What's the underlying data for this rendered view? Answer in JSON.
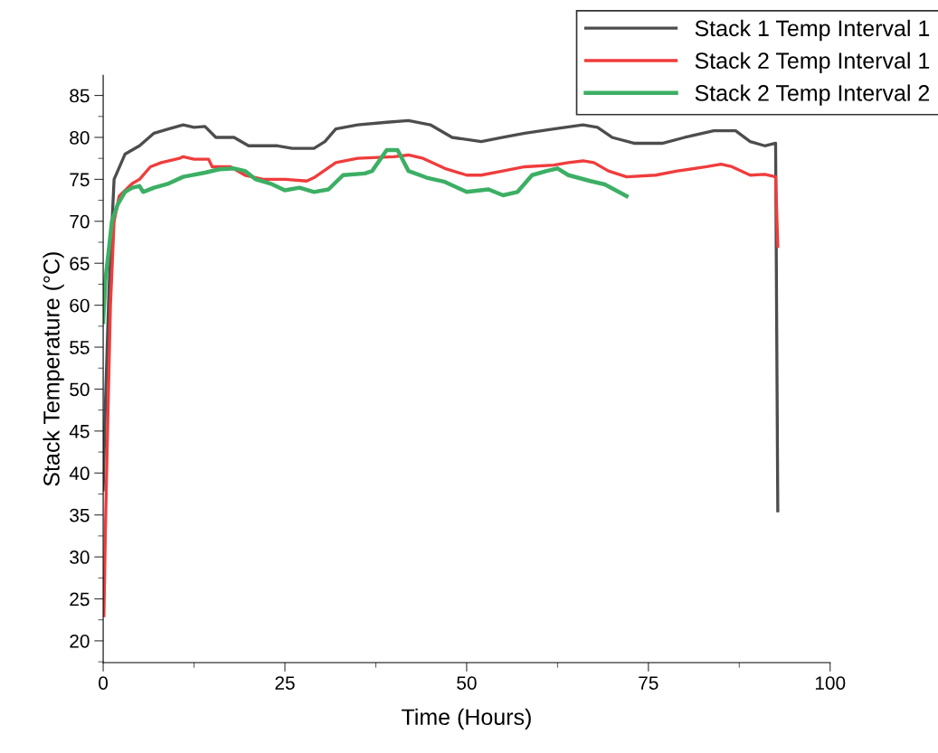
{
  "chart_data": {
    "type": "line",
    "xlabel": "Time (Hours)",
    "ylabel": "Stack Temperature (°C)",
    "xlim": [
      0,
      100
    ],
    "xticks": [
      0,
      25,
      50,
      75,
      100
    ],
    "ylim": [
      17.4,
      87.4
    ],
    "yticks": [
      20,
      25,
      30,
      35,
      40,
      45,
      50,
      55,
      60,
      65,
      70,
      75,
      80,
      85
    ],
    "grid": false,
    "legend": "top right",
    "line_style": "solid",
    "marker": "none",
    "series": [
      {
        "name": "Stack 1 Temp Interval 1",
        "color": "#4d4d4d",
        "x": [
          0,
          0.3,
          0.8,
          1.5,
          3,
          5,
          7,
          9,
          11,
          12.5,
          14,
          15.5,
          18,
          20,
          24,
          26,
          29,
          30.5,
          32,
          35,
          39,
          42,
          45,
          48,
          52,
          55,
          58,
          62,
          66,
          68,
          70,
          73,
          77,
          80,
          84,
          87,
          89,
          91,
          92.5,
          92.8
        ],
        "values": [
          38,
          48,
          62,
          75,
          78,
          79,
          80.5,
          81,
          81.5,
          81.2,
          81.3,
          80,
          80,
          79,
          79,
          78.7,
          78.7,
          79.5,
          81,
          81.5,
          81.8,
          82,
          81.5,
          80,
          79.5,
          80,
          80.5,
          81,
          81.5,
          81.2,
          80,
          79.3,
          79.3,
          80,
          80.8,
          80.8,
          79.5,
          79,
          79.3,
          35.5
        ]
      },
      {
        "name": "Stack 2 Temp Interval 1",
        "color": "#f03c3c",
        "x": [
          0.1,
          0.3,
          0.6,
          1,
          1.5,
          2.2,
          4,
          5,
          6.5,
          8,
          10.5,
          11,
          12.5,
          14.5,
          15,
          17.5,
          19.5,
          22,
          25,
          28,
          29,
          32,
          35,
          40,
          42,
          44,
          47,
          50,
          52,
          55,
          58,
          62,
          64,
          66,
          67.5,
          69.5,
          72,
          76,
          79,
          83,
          85,
          86.5,
          89,
          91,
          92.5,
          92.8
        ],
        "values": [
          23,
          33,
          45,
          60,
          70,
          73,
          74.5,
          75,
          76.5,
          77,
          77.5,
          77.7,
          77.4,
          77.4,
          76.5,
          76.5,
          75.5,
          75,
          75,
          74.8,
          75.2,
          77,
          77.5,
          77.7,
          77.9,
          77.5,
          76.3,
          75.5,
          75.5,
          76,
          76.5,
          76.7,
          77,
          77.2,
          77,
          76,
          75.3,
          75.5,
          76,
          76.5,
          76.8,
          76.5,
          75.5,
          75.6,
          75.3,
          67
        ]
      },
      {
        "name": "Stack 2 Temp Interval 2",
        "color": "#3caf64",
        "x": [
          0,
          0.3,
          0.7,
          1.2,
          2,
          3,
          4,
          5,
          5.5,
          7,
          9,
          11,
          14,
          16,
          18,
          19.5,
          21,
          23,
          25,
          27,
          29,
          31,
          33,
          36,
          37,
          39,
          40.5,
          42,
          44.5,
          47,
          50,
          53,
          55,
          57,
          59,
          61,
          62.5,
          64,
          67,
          69,
          72
        ],
        "values": [
          58,
          63,
          66,
          70,
          72,
          73.5,
          74,
          74.2,
          73.5,
          74,
          74.5,
          75.3,
          75.8,
          76.2,
          76.3,
          76,
          75,
          74.5,
          73.7,
          74,
          73.5,
          73.8,
          75.5,
          75.7,
          76,
          78.5,
          78.5,
          76,
          75.2,
          74.7,
          73.5,
          73.8,
          73.1,
          73.5,
          75.5,
          76,
          76.3,
          75.5,
          74.8,
          74.4,
          73
        ]
      }
    ]
  }
}
